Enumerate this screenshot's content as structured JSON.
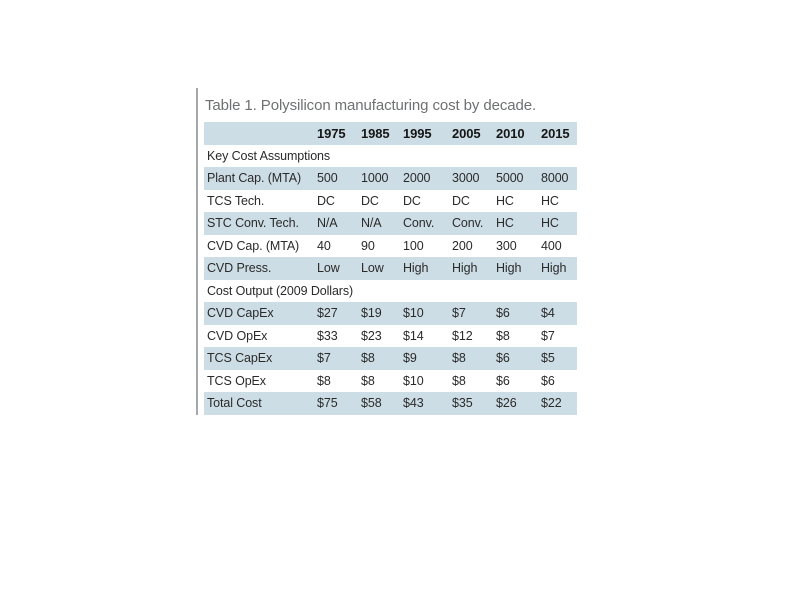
{
  "page": {
    "background": "#ffffff"
  },
  "table": {
    "caption": "Table 1. Polysilicon manufacturing cost by decade.",
    "columns": [
      "",
      "1975",
      "1985",
      "1995",
      "2005",
      "2010",
      "2015"
    ],
    "sections": [
      {
        "header": "Key Cost Assumptions",
        "rows": [
          {
            "label": "Plant Cap. (MTA)",
            "values": [
              "500",
              "1000",
              "2000",
              "3000",
              "5000",
              "8000"
            ]
          },
          {
            "label": "TCS Tech.",
            "values": [
              "DC",
              "DC",
              "DC",
              "DC",
              "HC",
              "HC"
            ]
          },
          {
            "label": "STC Conv. Tech.",
            "values": [
              "N/A",
              "N/A",
              "Conv.",
              "Conv.",
              "HC",
              "HC"
            ]
          },
          {
            "label": "CVD Cap. (MTA)",
            "values": [
              "40",
              "90",
              "100",
              "200",
              "300",
              "400"
            ]
          },
          {
            "label": "CVD Press.",
            "values": [
              "Low",
              "Low",
              "High",
              "High",
              "High",
              "High"
            ]
          }
        ]
      },
      {
        "header": "Cost Output (2009 Dollars)",
        "rows": [
          {
            "label": "CVD CapEx",
            "values": [
              "$27",
              "$19",
              "$10",
              "$7",
              "$6",
              "$4"
            ]
          },
          {
            "label": "CVD OpEx",
            "values": [
              "$33",
              "$23",
              "$14",
              "$12",
              "$8",
              "$7"
            ]
          },
          {
            "label": "TCS CapEx",
            "values": [
              "$7",
              "$8",
              "$9",
              "$8",
              "$6",
              "$5"
            ]
          },
          {
            "label": "TCS OpEx",
            "values": [
              "$8",
              "$8",
              "$10",
              "$8",
              "$6",
              "$6"
            ]
          },
          {
            "label": "Total Cost",
            "values": [
              "$75",
              "$58",
              "$43",
              "$35",
              "$26",
              "$22"
            ]
          }
        ]
      }
    ],
    "colors": {
      "stripe": "#cddde6",
      "caption_text": "#6e7072",
      "left_rule": "#a6a8ab"
    }
  },
  "chart_data": {
    "type": "table",
    "title": "Table 1. Polysilicon manufacturing cost by decade.",
    "columns": [
      "1975",
      "1985",
      "1995",
      "2005",
      "2010",
      "2015"
    ],
    "rows": [
      {
        "section": "Key Cost Assumptions"
      },
      {
        "label": "Plant Cap. (MTA)",
        "values": [
          500,
          1000,
          2000,
          3000,
          5000,
          8000
        ]
      },
      {
        "label": "TCS Tech.",
        "values": [
          "DC",
          "DC",
          "DC",
          "DC",
          "HC",
          "HC"
        ]
      },
      {
        "label": "STC Conv. Tech.",
        "values": [
          "N/A",
          "N/A",
          "Conv.",
          "Conv.",
          "HC",
          "HC"
        ]
      },
      {
        "label": "CVD Cap. (MTA)",
        "values": [
          40,
          90,
          100,
          200,
          300,
          400
        ]
      },
      {
        "label": "CVD Press.",
        "values": [
          "Low",
          "Low",
          "High",
          "High",
          "High",
          "High"
        ]
      },
      {
        "section": "Cost Output (2009 Dollars)"
      },
      {
        "label": "CVD CapEx",
        "values": [
          "$27",
          "$19",
          "$10",
          "$7",
          "$6",
          "$4"
        ]
      },
      {
        "label": "CVD OpEx",
        "values": [
          "$33",
          "$23",
          "$14",
          "$12",
          "$8",
          "$7"
        ]
      },
      {
        "label": "TCS CapEx",
        "values": [
          "$7",
          "$8",
          "$9",
          "$8",
          "$6",
          "$5"
        ]
      },
      {
        "label": "TCS OpEx",
        "values": [
          "$8",
          "$8",
          "$10",
          "$8",
          "$6",
          "$6"
        ]
      },
      {
        "label": "Total Cost",
        "values": [
          "$75",
          "$58",
          "$43",
          "$35",
          "$26",
          "$22"
        ]
      }
    ]
  }
}
